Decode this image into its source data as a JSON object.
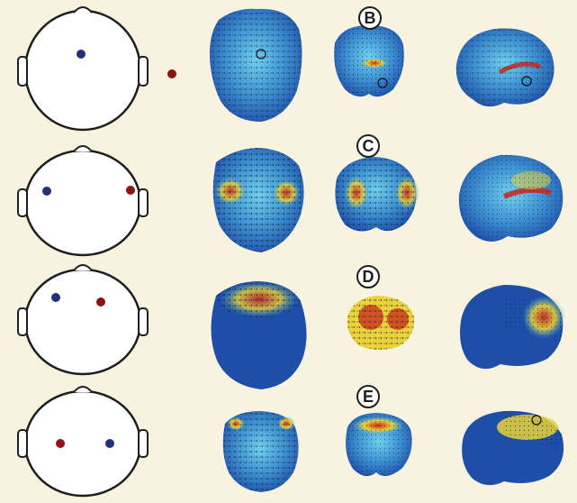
{
  "panels": [
    {
      "label": "B",
      "electrodes": [
        {
          "color": "#22317a",
          "side": "top-center"
        },
        {
          "color": "#8a1414",
          "side": "outside-right"
        }
      ]
    },
    {
      "label": "C",
      "electrodes": [
        {
          "color": "#22317a",
          "side": "left"
        },
        {
          "color": "#8a1414",
          "side": "right"
        }
      ]
    },
    {
      "label": "D",
      "electrodes": [
        {
          "color": "#22317a",
          "side": "front-left"
        },
        {
          "color": "#8a1414",
          "side": "front-right"
        }
      ]
    },
    {
      "label": "E",
      "electrodes": [
        {
          "color": "#8a1414",
          "side": "left"
        },
        {
          "color": "#22317a",
          "side": "right"
        }
      ]
    }
  ],
  "colors": {
    "background": "#f7f3df",
    "brain_low": "#1f4ea8",
    "brain_mid": "#37a9d8",
    "brain_high_1": "#e9d23a",
    "brain_high_2": "#c8281d",
    "vector_field": "#111111"
  }
}
